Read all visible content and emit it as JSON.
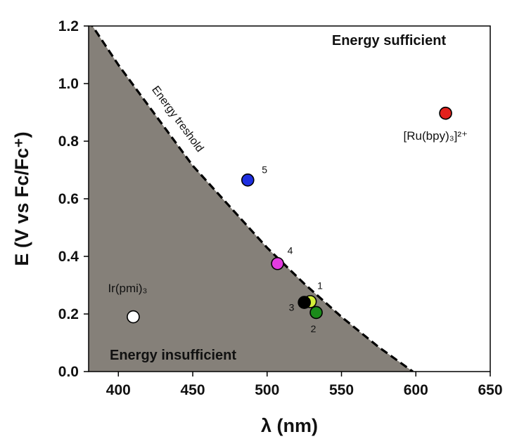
{
  "chart_data": {
    "type": "scatter",
    "xlabel": "λ (nm)",
    "ylabel": "E (V vs Fc/Fc⁺)",
    "xlim": [
      380,
      650
    ],
    "ylim": [
      0.0,
      1.2
    ],
    "x_ticks": [
      400,
      450,
      500,
      550,
      600,
      650
    ],
    "y_ticks": [
      0.0,
      0.2,
      0.4,
      0.6,
      0.8,
      1.0,
      1.2
    ],
    "y_tick_labels": [
      "0.0",
      "0.2",
      "0.4",
      "0.6",
      "0.8",
      "1.0",
      "1.2"
    ],
    "grid": false,
    "shaded_region_color": "#858079",
    "threshold": {
      "label": "Energy treshold",
      "style": "dashed",
      "points": [
        [
          380,
          1.22
        ],
        [
          400,
          1.065
        ],
        [
          450,
          0.715
        ],
        [
          500,
          0.43
        ],
        [
          525,
          0.305
        ],
        [
          550,
          0.19
        ],
        [
          575,
          0.085
        ],
        [
          598,
          0.0
        ]
      ]
    },
    "region_labels": {
      "sufficient": "Energy sufficient",
      "insufficient": "Energy insufficient"
    },
    "points": [
      {
        "x": 487,
        "y": 0.665,
        "label": "5",
        "color": "#1e2fe0"
      },
      {
        "x": 507,
        "y": 0.375,
        "label": "4",
        "color": "#e33be0"
      },
      {
        "x": 529,
        "y": 0.243,
        "label": "1",
        "color": "#d4ef3a"
      },
      {
        "x": 525,
        "y": 0.24,
        "label": "3",
        "color": "#000000"
      },
      {
        "x": 533,
        "y": 0.205,
        "label": "2",
        "color": "#1a8a1a"
      },
      {
        "x": 410,
        "y": 0.19,
        "label": "Ir(pmi)₃",
        "color": "#ffffff"
      },
      {
        "x": 620,
        "y": 0.897,
        "label": "[Ru(bpy)₃]²⁺",
        "color": "#e3211c"
      }
    ]
  }
}
